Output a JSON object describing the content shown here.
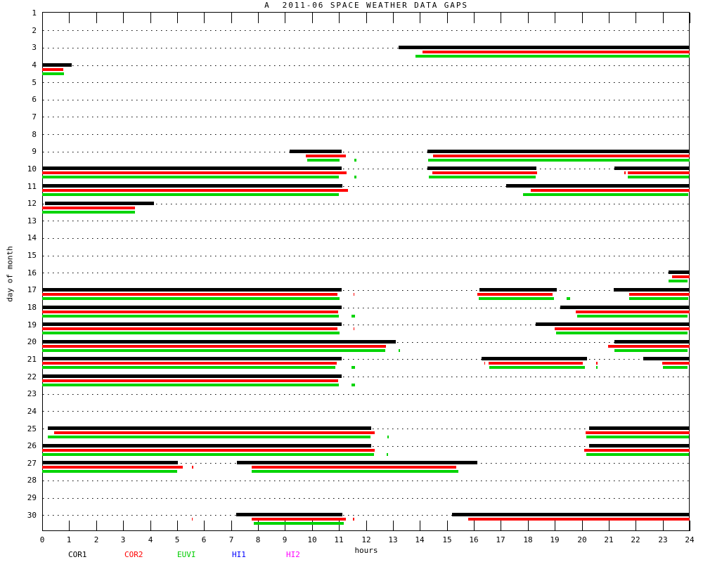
{
  "title": "A  2011-06 SPACE WEATHER DATA GAPS",
  "axes": {
    "xlabel": "hours",
    "ylabel": "day of month",
    "x_ticks": [
      0,
      1,
      2,
      3,
      4,
      5,
      6,
      7,
      8,
      9,
      10,
      11,
      12,
      13,
      14,
      15,
      16,
      17,
      18,
      19,
      20,
      21,
      22,
      23,
      24
    ],
    "y_days": [
      1,
      2,
      3,
      4,
      5,
      6,
      7,
      8,
      9,
      10,
      11,
      12,
      13,
      14,
      15,
      16,
      17,
      18,
      19,
      20,
      21,
      22,
      23,
      24,
      25,
      26,
      27,
      28,
      29,
      30
    ]
  },
  "legend": [
    {
      "label": "COR1",
      "color": "#000000"
    },
    {
      "label": "COR2",
      "color": "#ff0000"
    },
    {
      "label": "EUVI",
      "color": "#00cc00"
    },
    {
      "label": "HI1",
      "color": "#0000ff"
    },
    {
      "label": "HI2",
      "color": "#ff00ff"
    }
  ],
  "chart_data": {
    "type": "bar",
    "subtype": "horizontal-gap-timeline",
    "title": "A  2011-06 SPACE WEATHER DATA GAPS",
    "xlabel": "hours",
    "ylabel": "day of month",
    "xlim": [
      0,
      24
    ],
    "days_range": [
      1,
      30
    ],
    "grid": "dotted-horizontal-per-day",
    "legend_position": "bottom",
    "series": [
      {
        "name": "COR1",
        "color": "#000000",
        "segments": [
          [
            3,
            13.2,
            24
          ],
          [
            4,
            0,
            1.1
          ],
          [
            9,
            9.17,
            11.1
          ],
          [
            9,
            14.28,
            24
          ],
          [
            10,
            0,
            11.1
          ],
          [
            10,
            14.28,
            18.31
          ],
          [
            10,
            21.22,
            24
          ],
          [
            11,
            0,
            11.12
          ],
          [
            11,
            17.19,
            24
          ],
          [
            12,
            0.1,
            4.14
          ],
          [
            16,
            23.21,
            24
          ],
          [
            17,
            0,
            11.1
          ],
          [
            17,
            16.22,
            19.08
          ],
          [
            17,
            21.18,
            24
          ],
          [
            18,
            0,
            11.1
          ],
          [
            18,
            19.2,
            24
          ],
          [
            19,
            0,
            11.1
          ],
          [
            19,
            18.3,
            24
          ],
          [
            20,
            0,
            13.1
          ],
          [
            20,
            21.22,
            24
          ],
          [
            21,
            0,
            11.1
          ],
          [
            21,
            16.28,
            20.2
          ],
          [
            21,
            22.28,
            24
          ],
          [
            22,
            0,
            11.1
          ],
          [
            25,
            0.2,
            12.19
          ],
          [
            25,
            20.26,
            24
          ],
          [
            26,
            0,
            12.2
          ],
          [
            26,
            20.26,
            24
          ],
          [
            27,
            0,
            5.04
          ],
          [
            27,
            7.22,
            16.13
          ],
          [
            30,
            7.2,
            11.12
          ],
          [
            30,
            15.19,
            24
          ]
        ]
      },
      {
        "name": "COR2",
        "color": "#ff0000",
        "segments": [
          [
            3,
            14.1,
            24
          ],
          [
            4,
            0,
            0.79
          ],
          [
            9,
            9.78,
            11.25
          ],
          [
            9,
            14.5,
            24
          ],
          [
            10,
            0,
            11.28
          ],
          [
            10,
            14.46,
            18.34
          ],
          [
            10,
            21.57,
            21.63
          ],
          [
            10,
            21.7,
            24
          ],
          [
            11,
            0,
            11.34
          ],
          [
            11,
            18.12,
            24
          ],
          [
            12,
            0,
            3.43
          ],
          [
            16,
            23.34,
            24
          ],
          [
            17,
            0,
            10.95
          ],
          [
            17,
            11.53,
            11.58
          ],
          [
            17,
            16.13,
            18.92
          ],
          [
            17,
            21.77,
            24
          ],
          [
            18,
            0,
            10.98
          ],
          [
            18,
            19.77,
            24
          ],
          [
            19,
            0,
            10.95
          ],
          [
            19,
            11.53,
            11.58
          ],
          [
            19,
            18.99,
            24
          ],
          [
            20,
            0,
            12.75
          ],
          [
            20,
            20.98,
            24
          ],
          [
            21,
            0,
            10.92
          ],
          [
            21,
            16.38,
            16.43
          ],
          [
            21,
            16.54,
            20.05
          ],
          [
            21,
            20.52,
            20.58
          ],
          [
            21,
            22.98,
            24
          ],
          [
            22,
            0,
            10.98
          ],
          [
            25,
            0.45,
            12.33
          ],
          [
            25,
            20.13,
            24
          ],
          [
            26,
            0,
            12.33
          ],
          [
            26,
            20.1,
            24
          ],
          [
            27,
            0,
            5.21
          ],
          [
            27,
            5.55,
            5.6
          ],
          [
            27,
            7.77,
            15.34
          ],
          [
            30,
            5.54,
            5.59
          ],
          [
            30,
            7.77,
            11.27
          ],
          [
            30,
            11.52,
            11.57
          ],
          [
            30,
            15.78,
            24
          ]
        ]
      },
      {
        "name": "EUVI",
        "color": "#00d400",
        "segments": [
          [
            3,
            13.83,
            24
          ],
          [
            4,
            0,
            0.81
          ],
          [
            9,
            9.82,
            11.03
          ],
          [
            9,
            11.58,
            11.65
          ],
          [
            9,
            14.31,
            24
          ],
          [
            10,
            0,
            10.99
          ],
          [
            10,
            11.58,
            11.65
          ],
          [
            10,
            14.33,
            18.29
          ],
          [
            10,
            21.7,
            23.97
          ],
          [
            11,
            0,
            10.99
          ],
          [
            11,
            17.81,
            23.95
          ],
          [
            12,
            0,
            3.43
          ],
          [
            16,
            23.21,
            23.93
          ],
          [
            17,
            0,
            11.01
          ],
          [
            17,
            16.19,
            18.98
          ],
          [
            17,
            19.44,
            19.57
          ],
          [
            17,
            21.77,
            23.95
          ],
          [
            18,
            0,
            11.0
          ],
          [
            18,
            11.47,
            11.6
          ],
          [
            18,
            19.83,
            23.93
          ],
          [
            19,
            0,
            11.01
          ],
          [
            19,
            19.05,
            23.93
          ],
          [
            20,
            0,
            12.71
          ],
          [
            20,
            13.2,
            13.26
          ],
          [
            20,
            21.22,
            23.93
          ],
          [
            21,
            0,
            10.87
          ],
          [
            21,
            11.47,
            11.6
          ],
          [
            21,
            16.56,
            20.12
          ],
          [
            21,
            20.53,
            20.58
          ],
          [
            21,
            23.01,
            23.93
          ],
          [
            22,
            0,
            11.0
          ],
          [
            22,
            11.47,
            11.6
          ],
          [
            25,
            0.2,
            12.18
          ],
          [
            25,
            12.79,
            12.84
          ],
          [
            25,
            20.17,
            23.97
          ],
          [
            26,
            0,
            12.29
          ],
          [
            26,
            12.77,
            12.82
          ],
          [
            26,
            20.17,
            23.97
          ],
          [
            27,
            0,
            5.01
          ],
          [
            27,
            7.77,
            15.44
          ],
          [
            30,
            7.83,
            11.18
          ]
        ]
      },
      {
        "name": "HI1",
        "color": "#0000ff",
        "segments": []
      },
      {
        "name": "HI2",
        "color": "#ff00ff",
        "segments": []
      }
    ]
  }
}
